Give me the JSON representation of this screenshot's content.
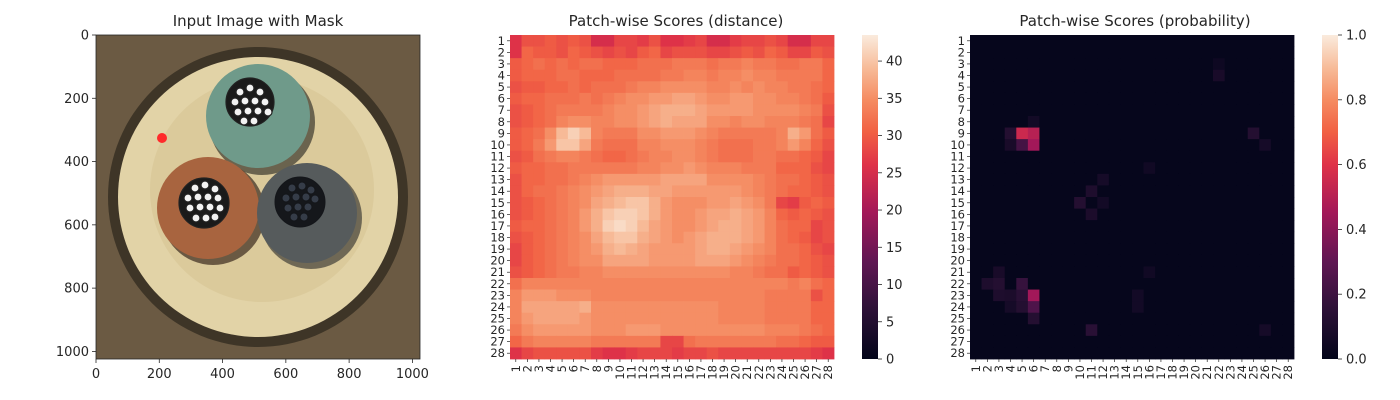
{
  "chart_data": [
    {
      "type": "image",
      "title": "Input Image with Mask",
      "xlabel": "",
      "ylabel": "",
      "xlim": [
        0,
        1024
      ],
      "ylim": [
        1024,
        0
      ],
      "xticks": [
        0,
        200,
        400,
        600,
        800,
        1000
      ],
      "yticks": [
        0,
        200,
        400,
        600,
        800,
        1000
      ],
      "content": "cable cross-section photo: three insulated conductors (green, brown, grey) in a cream sheath on a brown background",
      "colors": {
        "background": "#6b5a43",
        "sheath": "#e2d3a7",
        "green": "#6f9a8a",
        "brown": "#a8643f",
        "grey": "#565b5c",
        "mask_mark": "#ff2a2a"
      }
    },
    {
      "type": "heatmap",
      "title": "Patch-wise Scores (distance)",
      "xlabel": "",
      "ylabel": "",
      "rows": 28,
      "cols": 28,
      "colormap": "rocket",
      "colorbar": {
        "min": 0,
        "max": 43.5,
        "ticks": [
          0,
          5,
          10,
          15,
          20,
          25,
          30,
          35,
          40
        ]
      },
      "base_value": 31,
      "row_values": [
        [
          26,
          29,
          29,
          30,
          29,
          30,
          29,
          25,
          25,
          28,
          28,
          27,
          29,
          26,
          26,
          27,
          28,
          25,
          25,
          27,
          28,
          28,
          29,
          28,
          25,
          25,
          28,
          28
        ],
        [
          26,
          31,
          30,
          30,
          29,
          31,
          30,
          29,
          28,
          29,
          28,
          30,
          31,
          28,
          29,
          29,
          29,
          28,
          28,
          29,
          30,
          29,
          31,
          30,
          28,
          28,
          30,
          29
        ],
        [
          30,
          31,
          32,
          31,
          32,
          31,
          32,
          32,
          31,
          31,
          31,
          32,
          32,
          32,
          33,
          33,
          33,
          32,
          33,
          33,
          34,
          33,
          33,
          32,
          32,
          33,
          33,
          31
        ],
        [
          30,
          31,
          31,
          31,
          32,
          32,
          31,
          31,
          31,
          32,
          32,
          32,
          32,
          33,
          33,
          34,
          34,
          33,
          34,
          34,
          35,
          34,
          34,
          33,
          33,
          33,
          33,
          31
        ],
        [
          29,
          30,
          30,
          31,
          31,
          32,
          31,
          32,
          32,
          32,
          33,
          34,
          34,
          35,
          35,
          35,
          35,
          34,
          34,
          35,
          34,
          35,
          34,
          34,
          33,
          33,
          32,
          31
        ],
        [
          30,
          31,
          31,
          32,
          32,
          32,
          33,
          32,
          33,
          34,
          35,
          35,
          36,
          36,
          37,
          37,
          36,
          35,
          35,
          36,
          36,
          35,
          35,
          34,
          34,
          33,
          32,
          30
        ],
        [
          29,
          30,
          31,
          32,
          33,
          33,
          33,
          33,
          34,
          35,
          35,
          36,
          37,
          38,
          38,
          38,
          37,
          36,
          36,
          36,
          36,
          35,
          35,
          35,
          35,
          34,
          33,
          29
        ],
        [
          29,
          30,
          31,
          32,
          34,
          35,
          35,
          34,
          34,
          35,
          35,
          36,
          37,
          38,
          37,
          37,
          37,
          35,
          35,
          34,
          35,
          35,
          34,
          34,
          34,
          33,
          32,
          28
        ],
        [
          30,
          31,
          32,
          35,
          39,
          41,
          39,
          34,
          33,
          33,
          33,
          35,
          35,
          36,
          36,
          36,
          35,
          34,
          33,
          33,
          33,
          33,
          33,
          34,
          38,
          36,
          32,
          30
        ],
        [
          30,
          31,
          33,
          36,
          40,
          40,
          37,
          33,
          32,
          32,
          32,
          34,
          34,
          35,
          35,
          35,
          34,
          33,
          32,
          32,
          32,
          33,
          33,
          34,
          36,
          34,
          31,
          29
        ],
        [
          29,
          30,
          32,
          33,
          34,
          34,
          33,
          32,
          31,
          31,
          32,
          33,
          34,
          34,
          35,
          35,
          34,
          33,
          32,
          32,
          32,
          33,
          33,
          32,
          32,
          31,
          30,
          28
        ],
        [
          30,
          31,
          31,
          32,
          32,
          33,
          33,
          33,
          33,
          33,
          33,
          34,
          34,
          35,
          35,
          36,
          35,
          34,
          34,
          34,
          33,
          33,
          33,
          31,
          31,
          31,
          29,
          28
        ],
        [
          29,
          31,
          31,
          32,
          32,
          33,
          34,
          35,
          36,
          36,
          36,
          36,
          36,
          37,
          37,
          37,
          37,
          35,
          35,
          35,
          35,
          34,
          33,
          32,
          32,
          31,
          30,
          29
        ],
        [
          29,
          31,
          32,
          32,
          33,
          34,
          35,
          36,
          37,
          38,
          38,
          38,
          37,
          37,
          36,
          36,
          36,
          36,
          36,
          36,
          35,
          34,
          33,
          32,
          31,
          31,
          30,
          29
        ],
        [
          29,
          30,
          31,
          32,
          33,
          34,
          35,
          37,
          38,
          39,
          40,
          40,
          38,
          36,
          35,
          35,
          35,
          36,
          36,
          37,
          36,
          35,
          33,
          28,
          27,
          30,
          31,
          30
        ],
        [
          29,
          30,
          31,
          32,
          33,
          34,
          36,
          38,
          40,
          41,
          41,
          40,
          38,
          36,
          35,
          35,
          36,
          37,
          37,
          38,
          37,
          36,
          34,
          31,
          30,
          31,
          30,
          29
        ],
        [
          30,
          31,
          31,
          32,
          33,
          34,
          36,
          38,
          41,
          42,
          41,
          39,
          37,
          36,
          35,
          35,
          36,
          37,
          38,
          38,
          37,
          36,
          34,
          32,
          31,
          31,
          28,
          29
        ],
        [
          29,
          30,
          31,
          32,
          33,
          34,
          35,
          37,
          39,
          40,
          40,
          38,
          37,
          36,
          35,
          36,
          37,
          38,
          38,
          38,
          37,
          36,
          34,
          32,
          31,
          30,
          28,
          29
        ],
        [
          28,
          30,
          31,
          32,
          33,
          34,
          35,
          36,
          38,
          39,
          38,
          37,
          36,
          36,
          36,
          36,
          37,
          38,
          38,
          37,
          36,
          35,
          34,
          32,
          32,
          31,
          29,
          28
        ],
        [
          28,
          30,
          31,
          32,
          33,
          34,
          35,
          35,
          37,
          37,
          37,
          37,
          36,
          36,
          36,
          36,
          37,
          37,
          37,
          36,
          35,
          34,
          33,
          32,
          32,
          31,
          30,
          29
        ],
        [
          29,
          30,
          31,
          32,
          33,
          33,
          34,
          34,
          35,
          35,
          35,
          35,
          35,
          35,
          35,
          35,
          35,
          35,
          35,
          34,
          34,
          33,
          32,
          32,
          30,
          31,
          30,
          29
        ],
        [
          32,
          34,
          34,
          34,
          34,
          34,
          34,
          34,
          34,
          34,
          34,
          34,
          34,
          34,
          34,
          34,
          34,
          34,
          34,
          34,
          34,
          34,
          34,
          34,
          33,
          34,
          32,
          31
        ],
        [
          34,
          36,
          36,
          36,
          35,
          35,
          35,
          34,
          34,
          34,
          34,
          34,
          34,
          34,
          34,
          34,
          34,
          34,
          34,
          34,
          34,
          34,
          33,
          33,
          33,
          33,
          29,
          31
        ],
        [
          34,
          37,
          37,
          37,
          37,
          37,
          38,
          35,
          35,
          35,
          35,
          35,
          35,
          35,
          35,
          35,
          35,
          35,
          34,
          34,
          34,
          34,
          33,
          33,
          33,
          33,
          31,
          31
        ],
        [
          34,
          36,
          37,
          37,
          37,
          37,
          36,
          35,
          35,
          35,
          35,
          35,
          35,
          35,
          35,
          35,
          35,
          35,
          34,
          34,
          34,
          34,
          33,
          33,
          33,
          33,
          31,
          31
        ],
        [
          33,
          35,
          36,
          36,
          36,
          36,
          36,
          35,
          35,
          35,
          36,
          36,
          36,
          35,
          35,
          35,
          35,
          35,
          35,
          35,
          35,
          35,
          34,
          34,
          34,
          33,
          32,
          31
        ],
        [
          31,
          33,
          34,
          34,
          34,
          34,
          34,
          33,
          33,
          33,
          33,
          33,
          33,
          28,
          28,
          32,
          33,
          33,
          33,
          33,
          33,
          33,
          33,
          32,
          32,
          31,
          30,
          30
        ],
        [
          26,
          28,
          29,
          29,
          29,
          29,
          29,
          27,
          26,
          26,
          27,
          28,
          28,
          28,
          27,
          28,
          28,
          29,
          28,
          28,
          28,
          28,
          28,
          28,
          28,
          28,
          27,
          26
        ]
      ]
    },
    {
      "type": "heatmap",
      "title": "Patch-wise Scores (probability)",
      "xlabel": "",
      "ylabel": "",
      "rows": 28,
      "cols": 28,
      "colormap": "rocket",
      "colorbar": {
        "min": 0,
        "max": 1.0,
        "ticks": [
          "0.0",
          "0.2",
          "0.4",
          "0.6",
          "0.8",
          "1.0"
        ]
      },
      "base_value": 0.01,
      "hotspots": [
        {
          "row": 9,
          "col": 5,
          "value": 0.55
        },
        {
          "row": 9,
          "col": 6,
          "value": 0.5
        },
        {
          "row": 10,
          "col": 6,
          "value": 0.45
        },
        {
          "row": 10,
          "col": 5,
          "value": 0.22
        },
        {
          "row": 9,
          "col": 4,
          "value": 0.12
        },
        {
          "row": 10,
          "col": 4,
          "value": 0.08
        },
        {
          "row": 8,
          "col": 6,
          "value": 0.06
        },
        {
          "row": 9,
          "col": 25,
          "value": 0.12
        },
        {
          "row": 10,
          "col": 26,
          "value": 0.07
        },
        {
          "row": 4,
          "col": 22,
          "value": 0.08
        },
        {
          "row": 3,
          "col": 22,
          "value": 0.04
        },
        {
          "row": 15,
          "col": 10,
          "value": 0.12
        },
        {
          "row": 14,
          "col": 11,
          "value": 0.1
        },
        {
          "row": 16,
          "col": 11,
          "value": 0.09
        },
        {
          "row": 13,
          "col": 12,
          "value": 0.07
        },
        {
          "row": 15,
          "col": 12,
          "value": 0.06
        },
        {
          "row": 23,
          "col": 6,
          "value": 0.45
        },
        {
          "row": 24,
          "col": 6,
          "value": 0.25
        },
        {
          "row": 22,
          "col": 5,
          "value": 0.18
        },
        {
          "row": 23,
          "col": 5,
          "value": 0.14
        },
        {
          "row": 24,
          "col": 5,
          "value": 0.12
        },
        {
          "row": 22,
          "col": 2,
          "value": 0.1
        },
        {
          "row": 22,
          "col": 3,
          "value": 0.12
        },
        {
          "row": 23,
          "col": 3,
          "value": 0.1
        },
        {
          "row": 21,
          "col": 3,
          "value": 0.08
        },
        {
          "row": 23,
          "col": 4,
          "value": 0.09
        },
        {
          "row": 25,
          "col": 6,
          "value": 0.12
        },
        {
          "row": 24,
          "col": 4,
          "value": 0.07
        },
        {
          "row": 26,
          "col": 11,
          "value": 0.14
        },
        {
          "row": 23,
          "col": 15,
          "value": 0.06
        },
        {
          "row": 24,
          "col": 15,
          "value": 0.06
        },
        {
          "row": 26,
          "col": 26,
          "value": 0.07
        },
        {
          "row": 21,
          "col": 16,
          "value": 0.05
        },
        {
          "row": 12,
          "col": 16,
          "value": 0.05
        }
      ]
    }
  ]
}
